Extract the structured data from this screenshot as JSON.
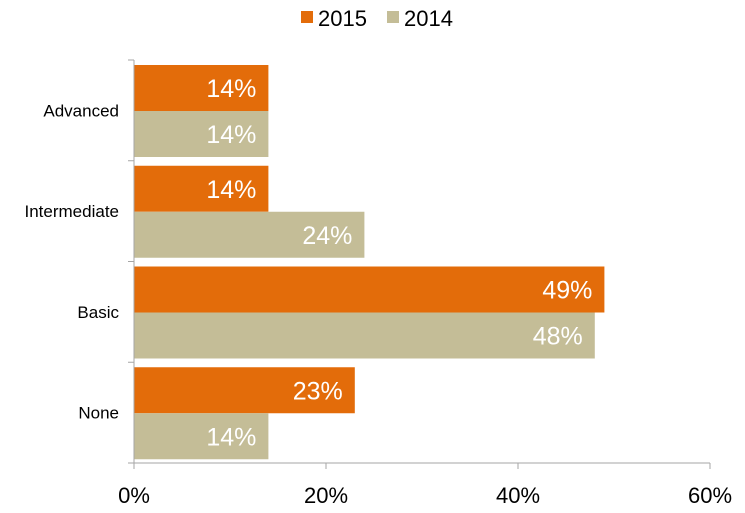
{
  "chart_data": {
    "type": "bar",
    "orientation": "horizontal",
    "categories": [
      "Advanced",
      "Intermediate",
      "Basic",
      "None"
    ],
    "series": [
      {
        "name": "2015",
        "color": "#E36C0A",
        "values": [
          14,
          14,
          49,
          23
        ],
        "labels": [
          "14%",
          "14%",
          "49%",
          "23%"
        ]
      },
      {
        "name": "2014",
        "color": "#C4BD97",
        "values": [
          14,
          24,
          48,
          14
        ],
        "labels": [
          "14%",
          "24%",
          "48%",
          "14%"
        ]
      }
    ],
    "xlim": [
      0,
      60
    ],
    "ticks": [
      0,
      20,
      40,
      60
    ],
    "tick_labels": [
      "0%",
      "20%",
      "40%",
      "60%"
    ],
    "legend_position": "top",
    "grid": false,
    "axis_color": "#A6A6A6"
  }
}
